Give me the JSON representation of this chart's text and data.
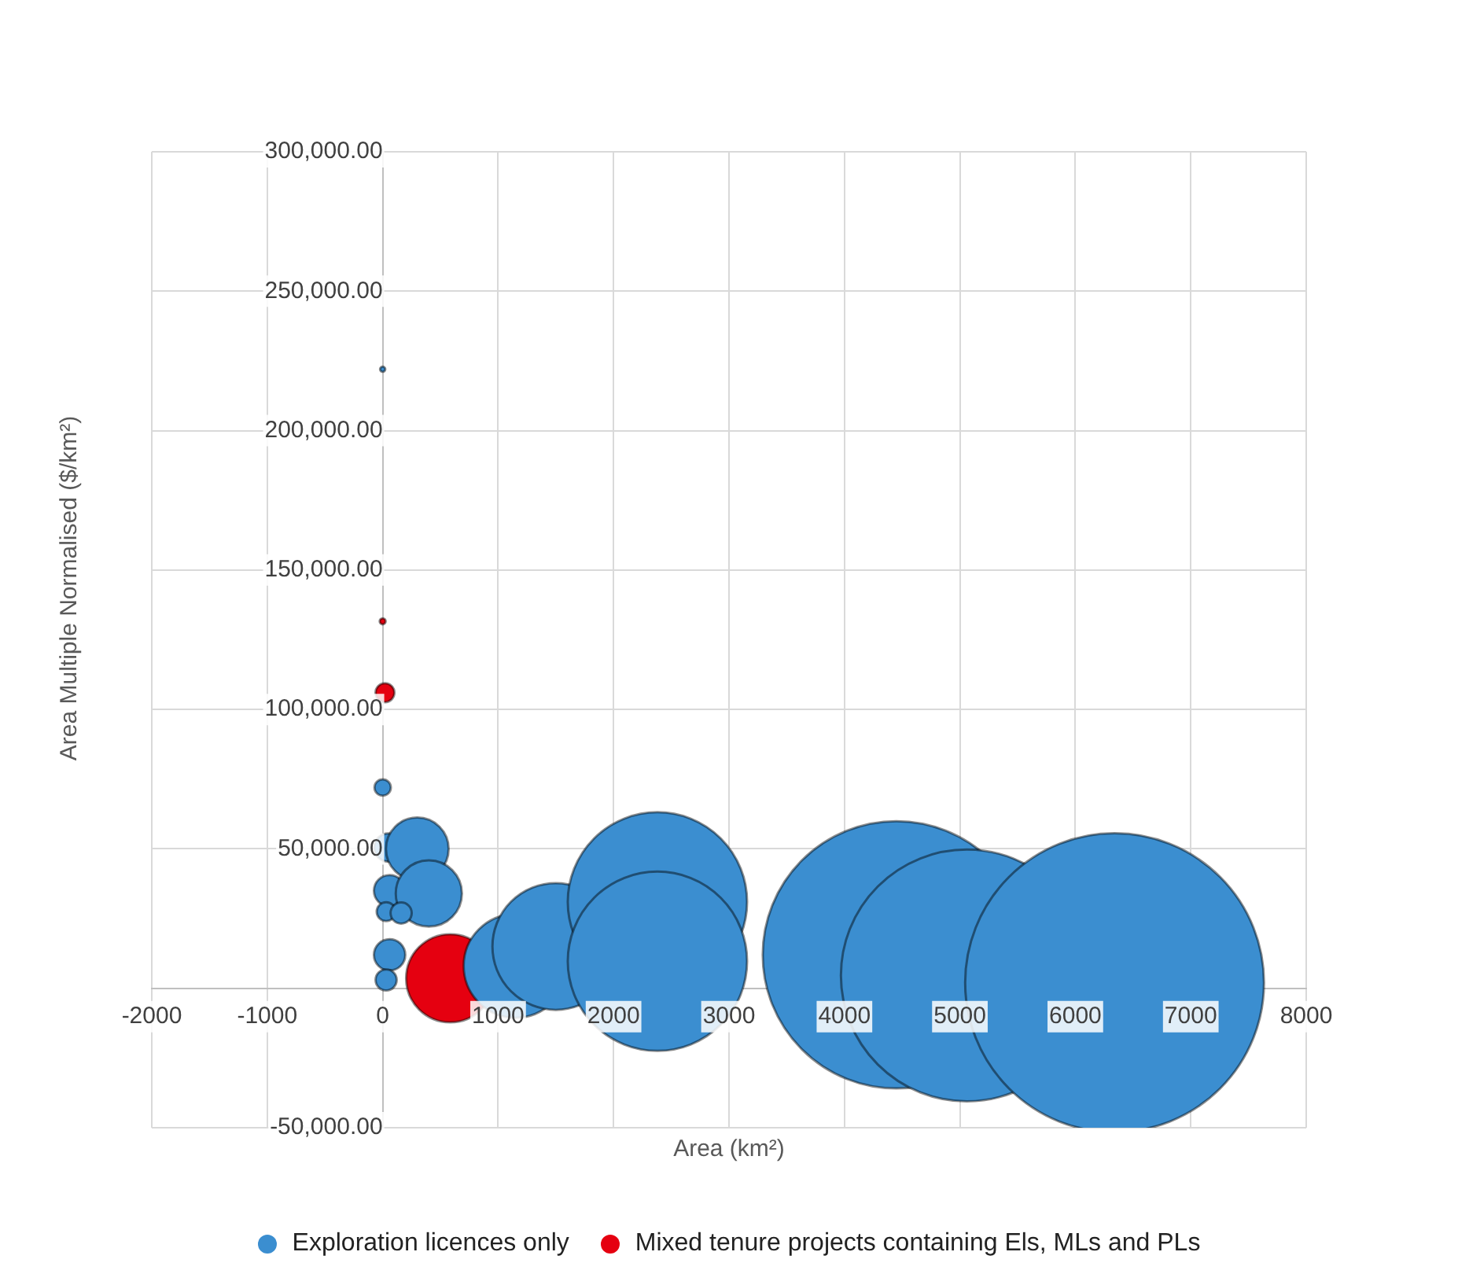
{
  "chart_data": {
    "type": "bubble",
    "xlabel": "Area (km²)",
    "ylabel": "Area Multiple Normalised ($/km²)",
    "xlim": [
      -2000,
      8000
    ],
    "xticks": [
      -2000,
      -1000,
      0,
      1000,
      2000,
      3000,
      4000,
      5000,
      6000,
      7000,
      8000
    ],
    "ylim": [
      -50000,
      300000
    ],
    "yticks": [
      {
        "value": -50000,
        "label": "-50,000.00"
      },
      {
        "value": 0,
        "label": null
      },
      {
        "value": 50000,
        "label": "50,000.00"
      },
      {
        "value": 100000,
        "label": "100,000.00"
      },
      {
        "value": 150000,
        "label": "150,000.00"
      },
      {
        "value": 200000,
        "label": "200,000.00"
      },
      {
        "value": 250000,
        "label": "250,000.00"
      },
      {
        "value": 300000,
        "label": "300,000.00"
      }
    ],
    "grid": true,
    "legend": "bottom",
    "marker": "circle",
    "series": [
      {
        "name": "Exploration licences only",
        "color": "#3b8ed0",
        "x": [
          0,
          0,
          50,
          300,
          60,
          400,
          30,
          160,
          60,
          30,
          1150,
          1500,
          2380,
          2380,
          4450,
          5060,
          6340
        ],
        "values": [
          222000,
          72000,
          50500,
          50000,
          35000,
          34000,
          27500,
          27000,
          12000,
          3000,
          8000,
          15000,
          31000,
          9700,
          12000,
          4600,
          2000
        ],
        "sizes": [
          0.0003,
          0.003,
          0.009,
          0.044,
          0.011,
          0.049,
          0.004,
          0.005,
          0.011,
          0.005,
          0.12,
          0.18,
          0.36,
          0.36,
          0.8,
          0.71,
          1
        ]
      },
      {
        "name": "Mixed tenure projects containing Els, MLs and PLs",
        "color": "#e50010",
        "x": [
          0,
          20,
          585
        ],
        "values": [
          131600,
          106000,
          3600
        ],
        "sizes": [
          0.0004,
          0.004,
          0.087
        ]
      }
    ]
  }
}
